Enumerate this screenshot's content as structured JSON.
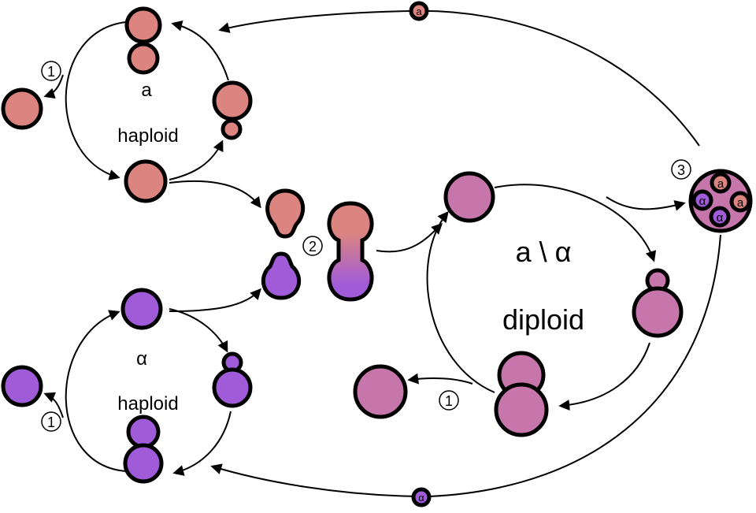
{
  "colors": {
    "a": "#dc8580",
    "alpha": "#a05bd8",
    "diploid": "#c676aa"
  },
  "labels": {
    "a_mating_type": "a",
    "a_ploidy": "haploid",
    "alpha_mating_type": "α",
    "alpha_ploidy": "haploid",
    "diploid_mating_type": "a \\ α",
    "diploid_ploidy": "diploid"
  },
  "steps": {
    "one": "1",
    "two": "2",
    "three": "3"
  },
  "spores": {
    "a": "a",
    "alpha": "α"
  }
}
